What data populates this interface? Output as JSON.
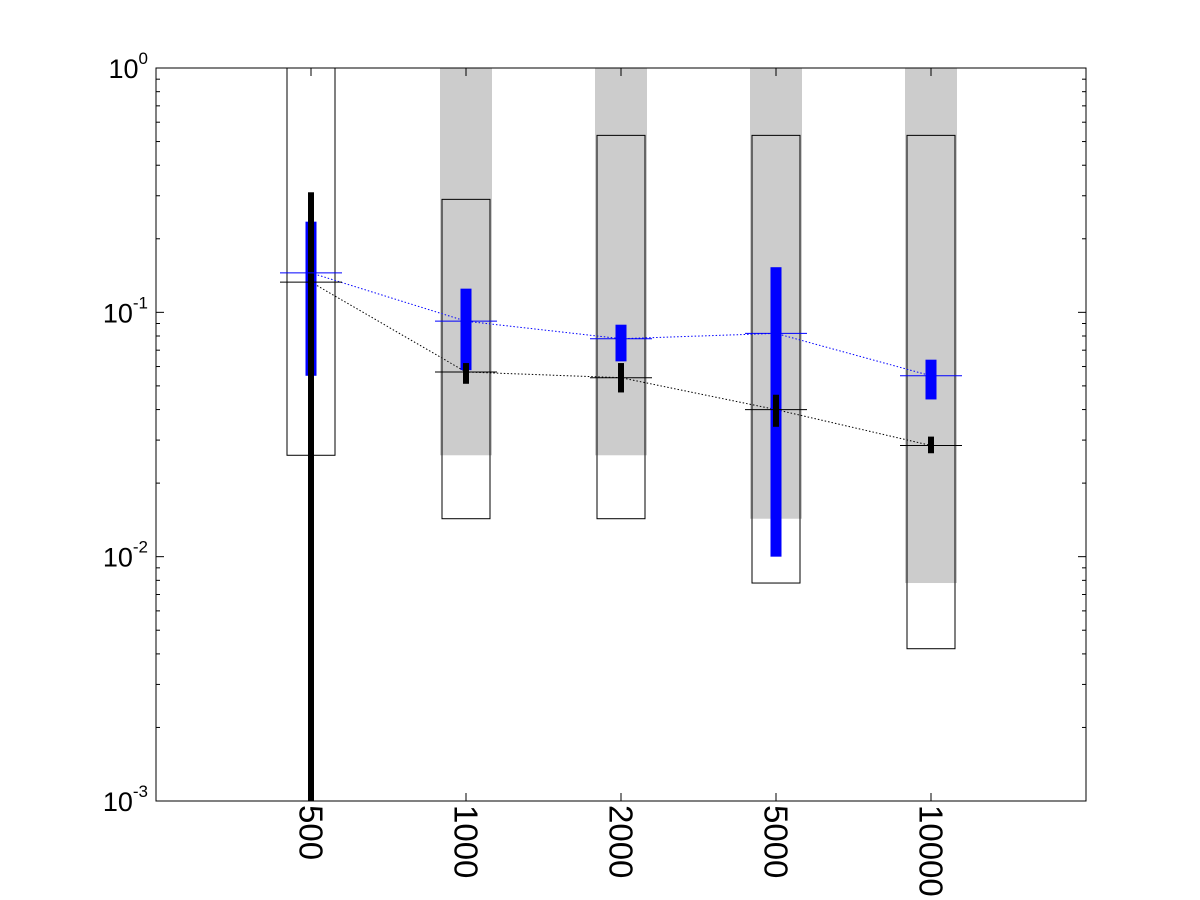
{
  "chart_data": {
    "type": "box",
    "title": "",
    "xlabel": "",
    "ylabel": "",
    "yscale": "log",
    "ylim": [
      0.001,
      1
    ],
    "grid": false,
    "legend": "none",
    "x_tick_rotation": "90-degrees-clockwise",
    "categories": [
      "500",
      "1000",
      "2000",
      "5000",
      "10000"
    ],
    "y_ticks": [
      {
        "value": 0.001,
        "base": "10",
        "exp": "-3"
      },
      {
        "value": 0.01,
        "base": "10",
        "exp": "-2"
      },
      {
        "value": 0.1,
        "base": "10",
        "exp": "-1"
      },
      {
        "value": 1,
        "base": "10",
        "exp": "0"
      }
    ],
    "colors": {
      "gray_band": "#cccccc",
      "outline_box": "#000000",
      "black_series": "#000000",
      "blue_series": "#0000ff"
    },
    "gray_band": [
      null,
      {
        "low": 0.026,
        "high": 1.0
      },
      {
        "low": 0.026,
        "high": 1.0
      },
      {
        "low": 0.0143,
        "high": 1.0
      },
      {
        "low": 0.0078,
        "high": 1.0
      }
    ],
    "outline_box": [
      {
        "low": 0.026,
        "high": 1.0
      },
      {
        "low": 0.0143,
        "high": 0.29
      },
      {
        "low": 0.0143,
        "high": 0.53
      },
      {
        "low": 0.0078,
        "high": 0.53
      },
      {
        "low": 0.0042,
        "high": 0.53
      }
    ],
    "series": [
      {
        "key": "blue",
        "color": "#0000ff",
        "median": [
          0.145,
          0.092,
          0.078,
          0.082,
          0.055
        ],
        "interval_low": [
          0.055,
          0.058,
          0.063,
          0.01,
          0.044
        ],
        "interval_high": [
          0.235,
          0.125,
          0.089,
          0.153,
          0.064
        ]
      },
      {
        "key": "black",
        "color": "#000000",
        "median": [
          0.133,
          0.057,
          0.054,
          0.04,
          0.0285
        ],
        "interval_low": [
          0.001,
          0.051,
          0.047,
          0.034,
          0.0265
        ],
        "interval_high": [
          0.31,
          0.062,
          0.062,
          0.046,
          0.031
        ]
      }
    ]
  }
}
